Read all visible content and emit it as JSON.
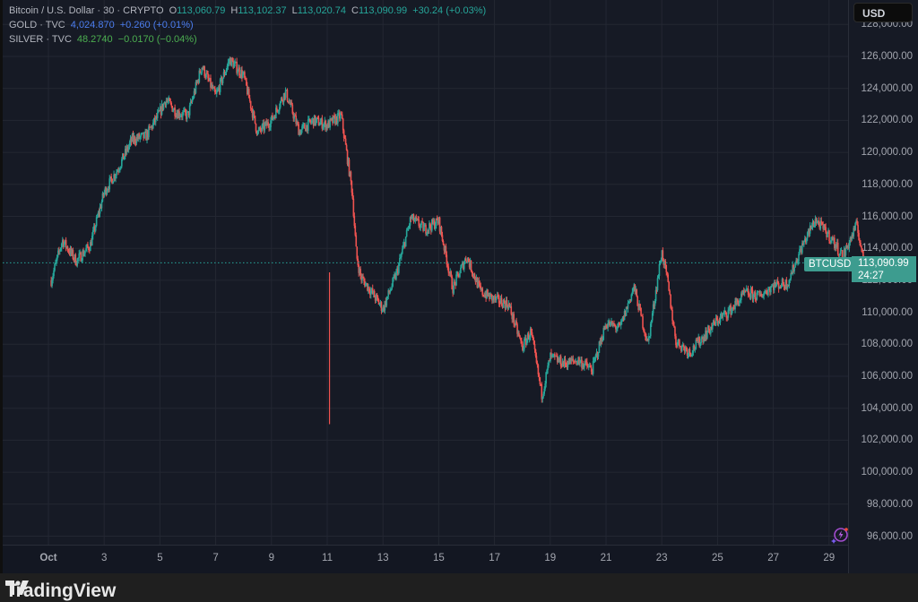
{
  "legend": {
    "main": {
      "name": "Bitcoin / U.S. Dollar · 30 · CRYPTO",
      "o_label": "O",
      "o": "113,060.79",
      "h_label": "H",
      "h": "113,102.37",
      "l_label": "L",
      "l": "113,020.74",
      "c_label": "C",
      "c": "113,090.99",
      "change": "+30.24 (+0.03%)"
    },
    "gold": {
      "name": "GOLD · TVC",
      "value": "4,024.870",
      "change": "+0.260 (+0.01%)"
    },
    "silver": {
      "name": "SILVER · TVC",
      "value": "48.2740",
      "change": "−0.0170 (−0.04%)"
    }
  },
  "currency_button": "USD",
  "last_price": {
    "symbol": "BTCUSD",
    "price": "113,090.99",
    "countdown": "24:27"
  },
  "brand": "TradingView",
  "colors": {
    "up": "#26a69a",
    "down": "#ef5350",
    "background": "#161a25",
    "grid": "#232732",
    "price_line": "#26a69a",
    "axis_text": "#a3a6af"
  },
  "chart_data": {
    "type": "candlestick",
    "title": "Bitcoin / U.S. Dollar · 30 · CRYPTO",
    "interval": "30",
    "xlabel": "",
    "ylabel": "USD",
    "ylim": [
      95300,
      127700
    ],
    "grid": true,
    "y_ticks": [
      96000,
      98000,
      100000,
      102000,
      104000,
      106000,
      108000,
      110000,
      112000,
      114000,
      116000,
      118000,
      120000,
      122000,
      124000,
      126000,
      128000
    ],
    "y_tick_labels": [
      "96,000.00",
      "98,000.00",
      "100,000.00",
      "102,000.00",
      "104,000.00",
      "106,000.00",
      "108,000.00",
      "110,000.00",
      "112,000.00",
      "114,000.00",
      "116,000.00",
      "118,000.00",
      "120,000.00",
      "122,000.00",
      "124,000.00",
      "126,000.00",
      "128,000.00"
    ],
    "x_ticks": [
      {
        "label": "Oct",
        "day": 1
      },
      {
        "label": "3",
        "day": 3
      },
      {
        "label": "5",
        "day": 5
      },
      {
        "label": "7",
        "day": 7
      },
      {
        "label": "9",
        "day": 9
      },
      {
        "label": "11",
        "day": 11
      },
      {
        "label": "13",
        "day": 13
      },
      {
        "label": "15",
        "day": 15
      },
      {
        "label": "17",
        "day": 17
      },
      {
        "label": "19",
        "day": 19
      },
      {
        "label": "21",
        "day": 21
      },
      {
        "label": "23",
        "day": 23
      },
      {
        "label": "25",
        "day": 25
      },
      {
        "label": "27",
        "day": 27
      },
      {
        "label": "29",
        "day": 29
      }
    ],
    "last_price": 113090.99,
    "approx_price_path": {
      "days": [
        0.1,
        0.5,
        1.0,
        1.5,
        2.0,
        2.5,
        3.0,
        3.5,
        4.0,
        4.2,
        4.6,
        5.0,
        5.5,
        6.0,
        6.5,
        7.0,
        7.5,
        8.0,
        8.5,
        9.0,
        9.5,
        10.0,
        10.5,
        10.9,
        11.05,
        11.2,
        11.5,
        12.0,
        12.5,
        13.0,
        13.5,
        14.0,
        14.5,
        15.0,
        15.5,
        16.0,
        16.5,
        17.0,
        17.3,
        17.7,
        18.0,
        18.5,
        19.0,
        19.5,
        20.0,
        20.5,
        21.0,
        21.5,
        22.0,
        22.2,
        22.5,
        23.0,
        23.5,
        24.0,
        24.5,
        25.0,
        25.5,
        26.0,
        26.5,
        27.0,
        27.5,
        28.0,
        28.5,
        29.0,
        29.3,
        29.6
      ],
      "prices": [
        112000,
        114500,
        113200,
        114200,
        117500,
        119000,
        120800,
        121000,
        122500,
        123300,
        122500,
        122300,
        125400,
        123500,
        125800,
        124800,
        121200,
        122000,
        123800,
        121300,
        122000,
        121700,
        122300,
        117500,
        113500,
        112200,
        111500,
        110200,
        112500,
        115900,
        115200,
        115700,
        111500,
        113500,
        111300,
        110800,
        110500,
        107800,
        108800,
        104800,
        107200,
        106800,
        107000,
        106400,
        109300,
        109000,
        111600,
        108000,
        113800,
        112000,
        108200,
        107500,
        108500,
        109500,
        110200,
        111200,
        111000,
        111700,
        111800,
        114000,
        115800,
        114800,
        113500,
        115500,
        112500,
        113090
      ]
    },
    "notable": {
      "high": "~126,000 (Oct 6–7)",
      "low": "~103,000 wick (Oct 10–11)",
      "recent_high": "~116,000 (Oct 28)"
    }
  }
}
